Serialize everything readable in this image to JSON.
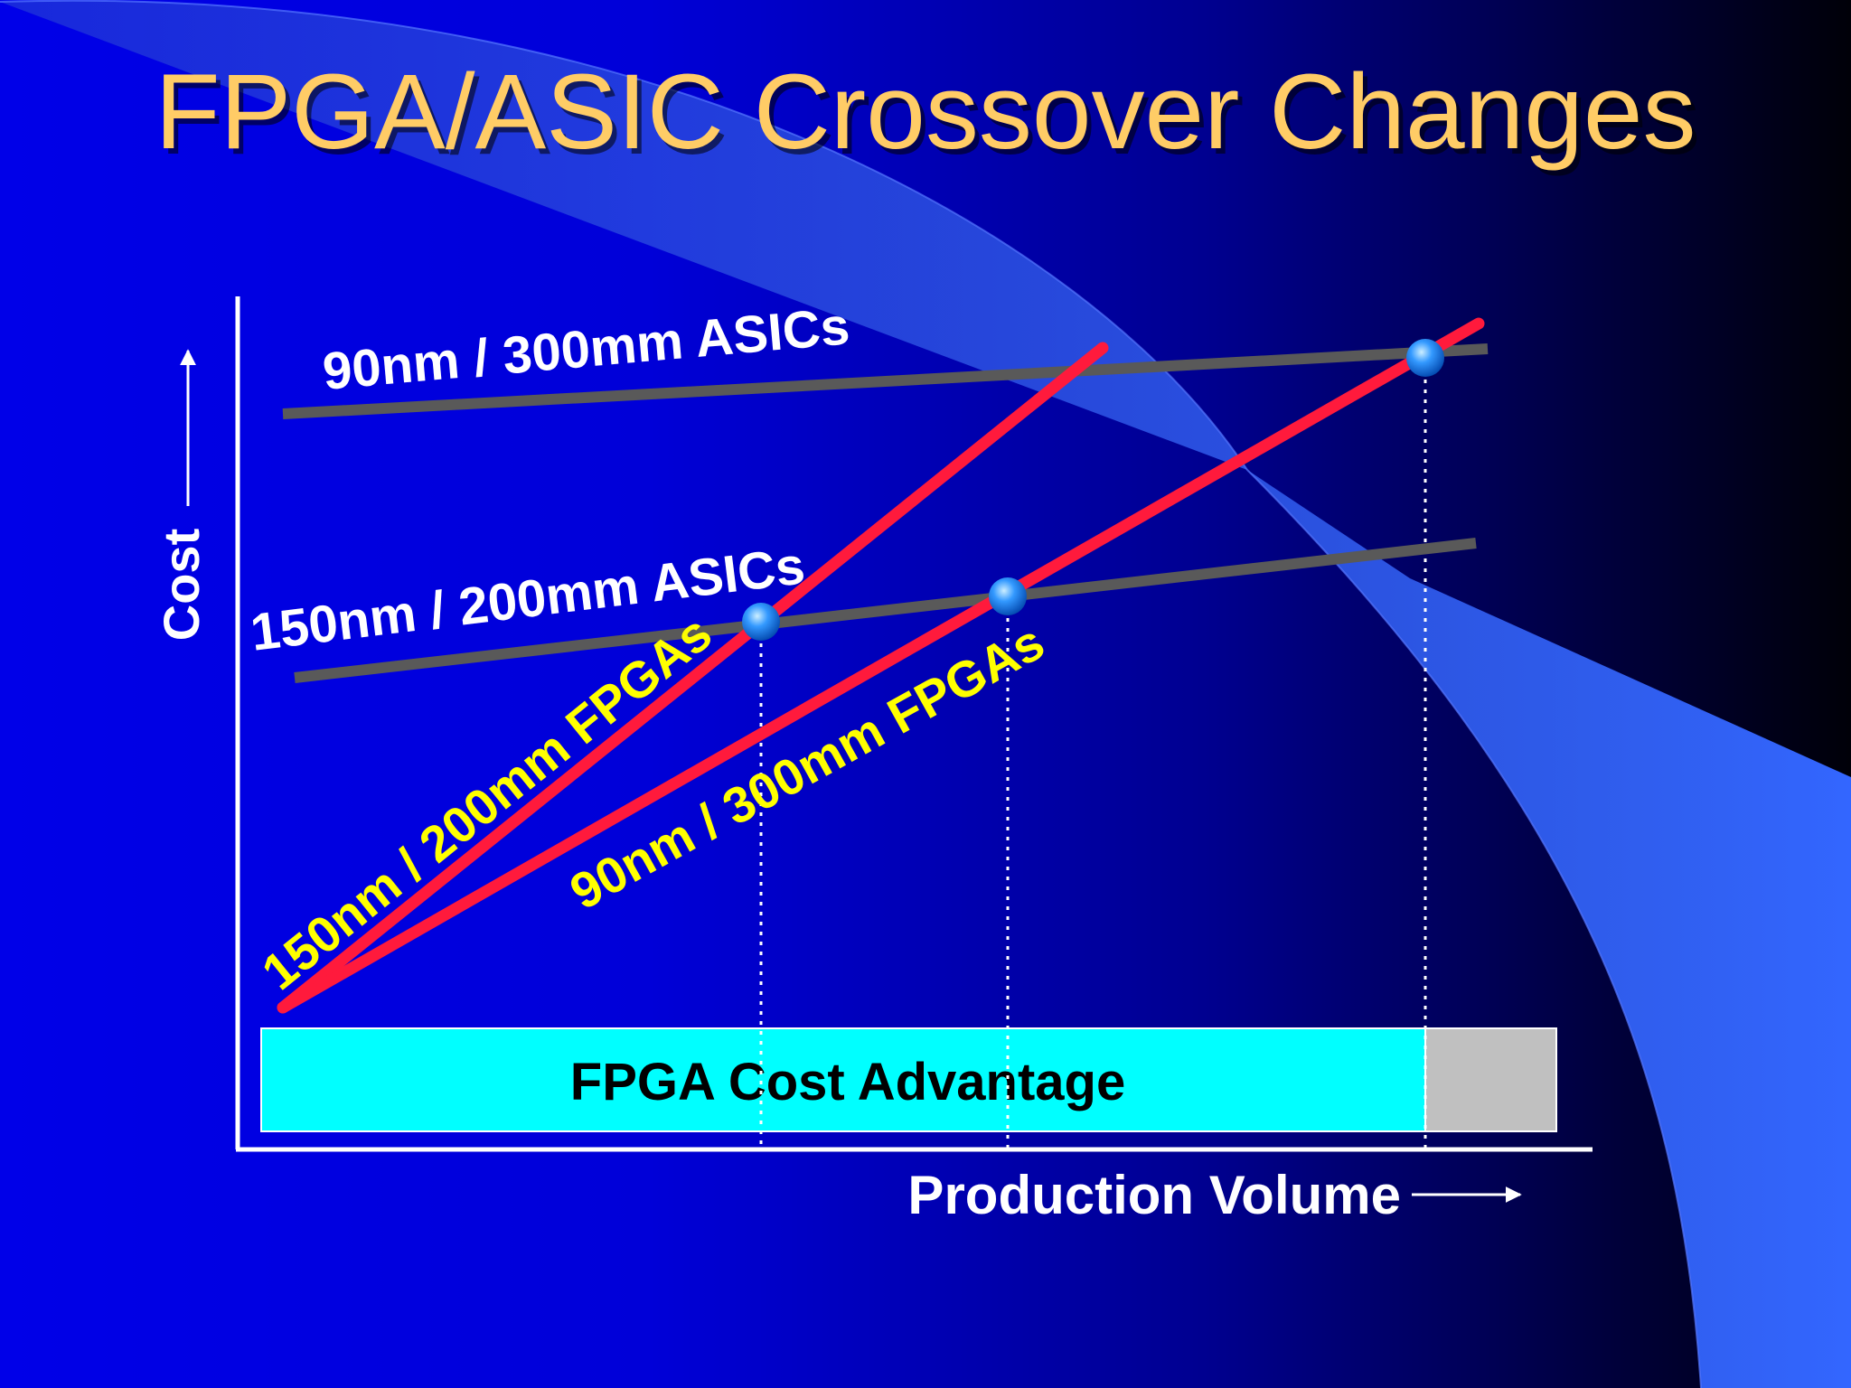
{
  "slide": {
    "title": "FPGA/ASIC Crossover Changes"
  },
  "chart_data": {
    "type": "line",
    "title": "FPGA/ASIC Crossover Changes",
    "xlabel": "Production Volume",
    "ylabel": "Cost",
    "series": [
      {
        "name": "90nm / 300mm ASICs",
        "kind": "asic"
      },
      {
        "name": "150nm / 200mm ASICs",
        "kind": "asic"
      },
      {
        "name": "150nm / 200mm FPGAs",
        "kind": "fpga"
      },
      {
        "name": "90nm / 300mm FPGAs",
        "kind": "fpga"
      }
    ],
    "annotations": {
      "advantage_label": "FPGA Cost Advantage"
    }
  },
  "colors": {
    "background_start": "#0000e0",
    "background_end": "#000010",
    "title": "#ffcc66",
    "asic_line": "#595959",
    "fpga_line": "#ff1a3c",
    "fpga_label": "#ffff00",
    "advantage_bar": "#00ffff",
    "asic_region": "#c0c0c0",
    "crossover_marker": "#3399ff"
  }
}
